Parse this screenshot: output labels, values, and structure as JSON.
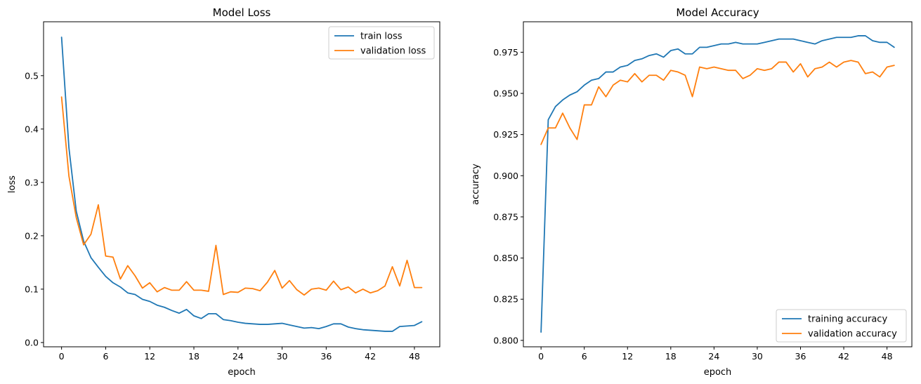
{
  "chart_data": [
    {
      "type": "line",
      "title": "Model Loss",
      "xlabel": "epoch",
      "ylabel": "loss",
      "xlim": [
        -2.45,
        51.45
      ],
      "ylim": [
        -0.008,
        0.601
      ],
      "xticks": [
        0,
        6,
        12,
        18,
        24,
        30,
        36,
        42,
        48
      ],
      "yticks": [
        0.0,
        0.1,
        0.2,
        0.3,
        0.4,
        0.5
      ],
      "ytick_labels": [
        "0.0",
        "0.1",
        "0.2",
        "0.3",
        "0.4",
        "0.5"
      ],
      "grid": false,
      "legend_position": "top-right",
      "series": [
        {
          "name": "train loss",
          "color": "#1f77b4",
          "values": [
            0.572,
            0.365,
            0.246,
            0.19,
            0.159,
            0.141,
            0.124,
            0.112,
            0.104,
            0.093,
            0.09,
            0.081,
            0.077,
            0.07,
            0.066,
            0.06,
            0.055,
            0.062,
            0.05,
            0.045,
            0.054,
            0.054,
            0.043,
            0.041,
            0.038,
            0.036,
            0.035,
            0.034,
            0.034,
            0.035,
            0.036,
            0.033,
            0.03,
            0.027,
            0.028,
            0.026,
            0.03,
            0.035,
            0.035,
            0.029,
            0.026,
            0.024,
            0.023,
            0.022,
            0.021,
            0.021,
            0.03,
            0.031,
            0.032,
            0.039
          ]
        },
        {
          "name": "validation loss",
          "color": "#ff7f0e",
          "values": [
            0.46,
            0.312,
            0.234,
            0.183,
            0.203,
            0.258,
            0.162,
            0.16,
            0.119,
            0.144,
            0.125,
            0.102,
            0.112,
            0.095,
            0.103,
            0.098,
            0.098,
            0.114,
            0.098,
            0.098,
            0.096,
            0.182,
            0.09,
            0.095,
            0.094,
            0.102,
            0.101,
            0.097,
            0.113,
            0.135,
            0.102,
            0.116,
            0.099,
            0.089,
            0.1,
            0.102,
            0.098,
            0.115,
            0.099,
            0.104,
            0.093,
            0.1,
            0.093,
            0.097,
            0.106,
            0.142,
            0.106,
            0.154,
            0.103,
            0.103
          ]
        }
      ]
    },
    {
      "type": "line",
      "title": "Model Accuracy",
      "xlabel": "epoch",
      "ylabel": "accuracy",
      "xlim": [
        -2.45,
        51.45
      ],
      "ylim": [
        0.7961,
        0.9935
      ],
      "xticks": [
        0,
        6,
        12,
        18,
        24,
        30,
        36,
        42,
        48
      ],
      "yticks": [
        0.8,
        0.825,
        0.85,
        0.875,
        0.9,
        0.925,
        0.95,
        0.975
      ],
      "ytick_labels": [
        "0.800",
        "0.825",
        "0.850",
        "0.875",
        "0.900",
        "0.925",
        "0.950",
        "0.975"
      ],
      "grid": false,
      "legend_position": "bottom-right",
      "series": [
        {
          "name": "training accuracy",
          "color": "#1f77b4",
          "values": [
            0.805,
            0.934,
            0.942,
            0.946,
            0.949,
            0.951,
            0.955,
            0.958,
            0.959,
            0.963,
            0.963,
            0.966,
            0.967,
            0.97,
            0.971,
            0.973,
            0.974,
            0.972,
            0.976,
            0.977,
            0.974,
            0.974,
            0.978,
            0.978,
            0.979,
            0.98,
            0.98,
            0.981,
            0.98,
            0.98,
            0.98,
            0.981,
            0.982,
            0.983,
            0.983,
            0.983,
            0.982,
            0.981,
            0.98,
            0.982,
            0.983,
            0.984,
            0.984,
            0.984,
            0.985,
            0.985,
            0.982,
            0.981,
            0.981,
            0.978
          ]
        },
        {
          "name": "validation accuracy",
          "color": "#ff7f0e",
          "values": [
            0.919,
            0.929,
            0.929,
            0.938,
            0.929,
            0.922,
            0.943,
            0.943,
            0.954,
            0.948,
            0.955,
            0.958,
            0.957,
            0.962,
            0.957,
            0.961,
            0.961,
            0.958,
            0.964,
            0.963,
            0.961,
            0.948,
            0.966,
            0.965,
            0.966,
            0.965,
            0.964,
            0.964,
            0.959,
            0.961,
            0.965,
            0.964,
            0.965,
            0.969,
            0.969,
            0.963,
            0.968,
            0.96,
            0.965,
            0.966,
            0.969,
            0.966,
            0.969,
            0.97,
            0.969,
            0.962,
            0.963,
            0.96,
            0.966,
            0.967
          ]
        }
      ]
    }
  ]
}
